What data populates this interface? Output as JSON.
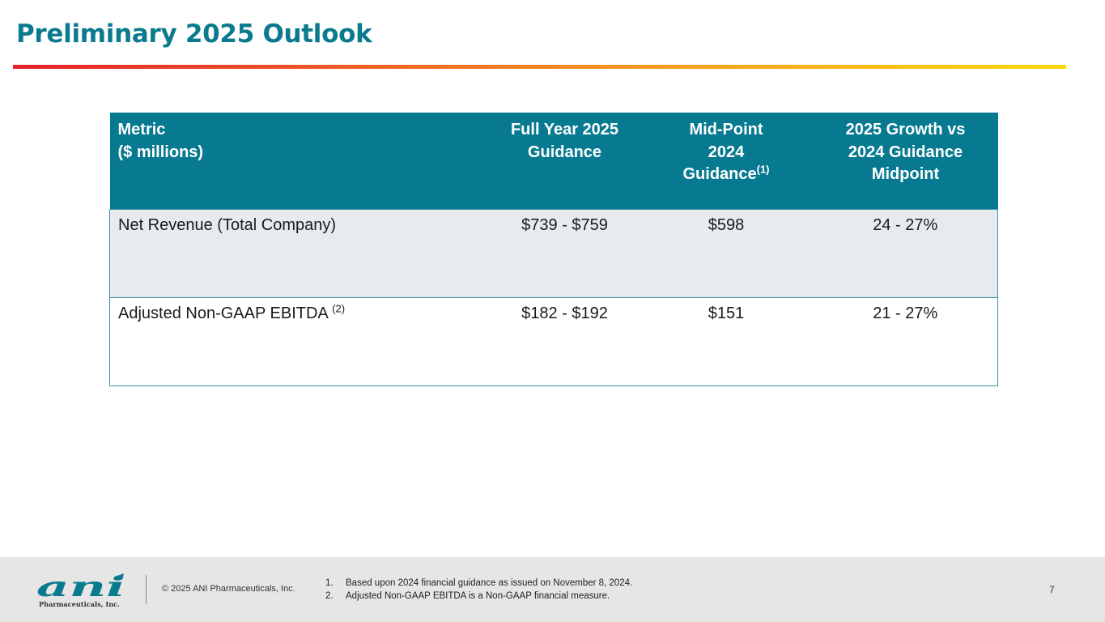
{
  "slide": {
    "title": "Preliminary 2025 Outlook",
    "accent_colors": [
      "#e3232b",
      "#f59a1f",
      "#fad80f"
    ],
    "header_color": "#077a91"
  },
  "table": {
    "headers": {
      "metric_line1": "Metric",
      "metric_line2": "($ millions)",
      "full_year_line1": "Full Year 2025",
      "full_year_line2": "Guidance",
      "midpoint_line1": "Mid-Point",
      "midpoint_line2": "2024",
      "midpoint_line3": "Guidance",
      "midpoint_sup": "(1)",
      "growth_line1": "2025 Growth vs",
      "growth_line2": "2024 Guidance",
      "growth_line3": "Midpoint"
    },
    "rows": [
      {
        "metric": "Net Revenue (Total Company)",
        "metric_sup": "",
        "full_year": "$739 - $759",
        "midpoint": "$598",
        "growth": "24 - 27%"
      },
      {
        "metric": "Adjusted Non-GAAP EBITDA",
        "metric_sup": "(2)",
        "full_year": "$182 - $192",
        "midpoint": "$151",
        "growth": "21 - 27%"
      }
    ]
  },
  "footer": {
    "logo_text": "ani",
    "logo_subtext": "Pharmaceuticals, Inc.",
    "copyright": "© 2025 ANI Pharmaceuticals, Inc.",
    "footnotes": [
      {
        "num": "1.",
        "text": "Based upon 2024 financial guidance as issued on November 8, 2024."
      },
      {
        "num": "2.",
        "text": "Adjusted Non-GAAP EBITDA is a Non-GAAP financial measure."
      }
    ],
    "page_number": "7"
  }
}
